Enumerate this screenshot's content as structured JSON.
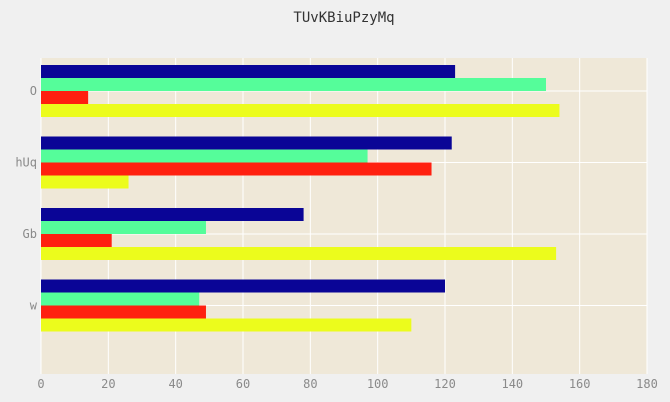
{
  "chart_data": {
    "type": "bar",
    "orientation": "horizontal",
    "title": "TUvKBiuPzyMq",
    "xlabel": "",
    "ylabel": "",
    "categories": [
      "w",
      "Gb",
      "hUq",
      "O"
    ],
    "xlim": [
      0,
      180
    ],
    "xticks": [
      0,
      20,
      40,
      60,
      80,
      100,
      120,
      140,
      160,
      180
    ],
    "grid": true,
    "legend": "none",
    "background": "#efe8d8",
    "series": [
      {
        "color": "#ecfc1c",
        "values": [
          110,
          153,
          26,
          154
        ]
      },
      {
        "color": "#ff2010",
        "values": [
          49,
          21,
          116,
          14
        ]
      },
      {
        "color": "#55fd9a",
        "values": [
          47,
          49,
          97,
          150
        ]
      },
      {
        "color": "#0a0596",
        "values": [
          120,
          78,
          122,
          123
        ]
      }
    ]
  }
}
